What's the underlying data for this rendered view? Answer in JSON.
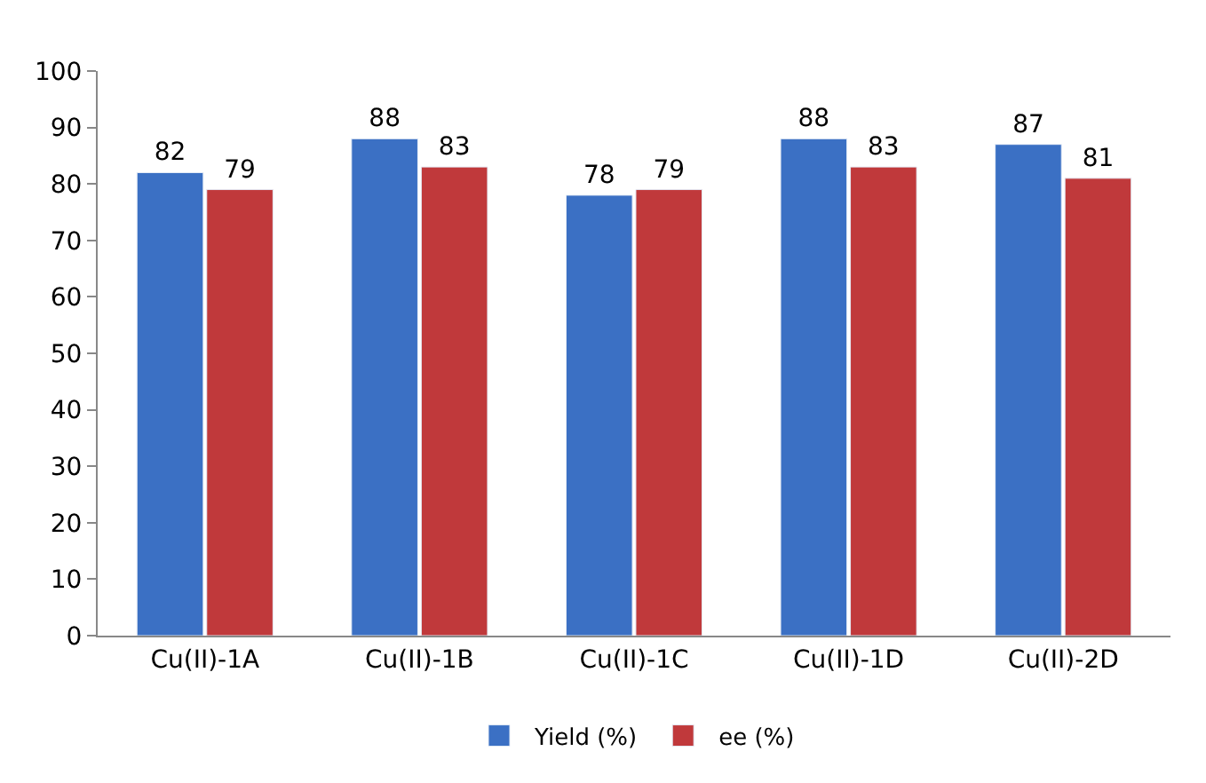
{
  "chart_data": {
    "type": "bar",
    "categories": [
      "Cu(II)-1A",
      "Cu(II)-1B",
      "Cu(II)-1C",
      "Cu(II)-1D",
      "Cu(II)-2D"
    ],
    "series": [
      {
        "name": "Yield (%)",
        "color": "#3b70c4",
        "values": [
          82,
          88,
          78,
          88,
          87
        ]
      },
      {
        "name": "ee (%)",
        "color": "#c0393b",
        "values": [
          79,
          83,
          79,
          83,
          81
        ]
      }
    ],
    "ylim": [
      0,
      100
    ],
    "yticks": [
      0,
      10,
      20,
      30,
      40,
      50,
      60,
      70,
      80,
      90,
      100
    ],
    "grid": false,
    "legend": "bottom",
    "data_labels": true
  }
}
